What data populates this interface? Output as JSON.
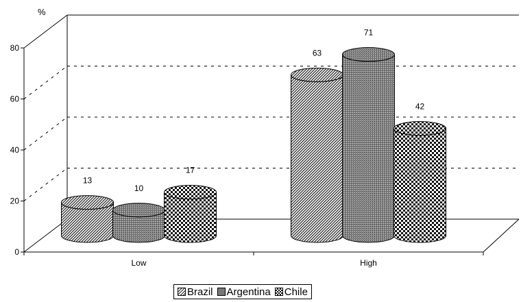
{
  "chart_data": {
    "type": "bar",
    "ylabel": "%",
    "ylim": [
      0,
      80
    ],
    "yticks": [
      "0",
      "20",
      "40",
      "60",
      "80"
    ],
    "categories": [
      "Low",
      "High"
    ],
    "series": [
      {
        "name": "Brazil",
        "values": [
          13,
          63
        ],
        "pattern": "diagonal-hatch"
      },
      {
        "name": "Argentina",
        "values": [
          10,
          71
        ],
        "pattern": "dense-grey"
      },
      {
        "name": "Chile",
        "values": [
          17,
          42
        ],
        "pattern": "checker"
      }
    ],
    "data_labels": true,
    "grid": "dashed-horizontal",
    "legend": "bottom-center",
    "colors": {
      "background": "#ffffff",
      "stroke": "#000000"
    }
  }
}
